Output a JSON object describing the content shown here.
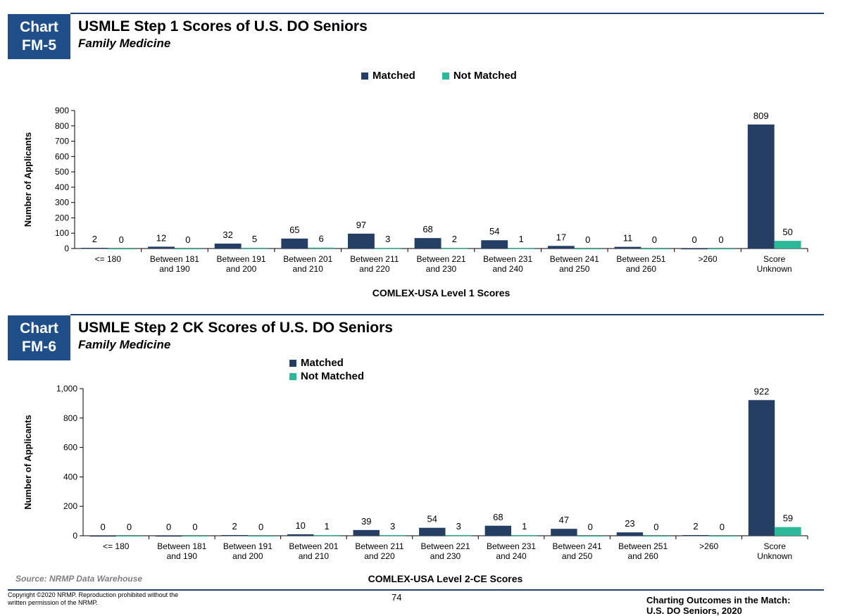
{
  "colors": {
    "matched": "#243f63",
    "not_matched": "#2bb99a",
    "badge": "#1f4e89",
    "rule": "#1f3f6e"
  },
  "charts": [
    {
      "badge": [
        "Chart",
        "FM-5"
      ],
      "title": "USMLE Step 1 Scores of U.S. DO Seniors",
      "subtitle": "Family Medicine",
      "legend": [
        "Matched",
        "Not Matched"
      ]
    },
    {
      "badge": [
        "Chart",
        "FM-6"
      ],
      "title": "USMLE Step 2 CK Scores of U.S. DO Seniors",
      "subtitle": "Family Medicine",
      "legend": [
        "Matched",
        "Not Matched"
      ]
    }
  ],
  "chart_data": [
    {
      "type": "bar",
      "title": "USMLE Step 1 Scores of U.S. DO Seniors",
      "subtitle": "Family Medicine",
      "xlabel": "COMLEX-USA Level 1 Scores",
      "ylabel": "Number of Applicants",
      "ylim": [
        0,
        900
      ],
      "yticks": [
        "0",
        "100",
        "200",
        "300",
        "400",
        "500",
        "600",
        "700",
        "800",
        "900"
      ],
      "ytick_values": [
        0,
        100,
        200,
        300,
        400,
        500,
        600,
        700,
        800,
        900
      ],
      "categories": [
        "<= 180",
        "Between 181 and 190",
        "Between 191 and 200",
        "Between 201 and 210",
        "Between 211 and 220",
        "Between 221 and 230",
        "Between 231 and 240",
        "Between 241 and 250",
        "Between 251 and 260",
        ">260",
        "Score Unknown"
      ],
      "category_lines": [
        [
          "<= 180"
        ],
        [
          "Between 181",
          "and 190"
        ],
        [
          "Between 191",
          "and 200"
        ],
        [
          "Between 201",
          "and 210"
        ],
        [
          "Between 211",
          "and 220"
        ],
        [
          "Between 221",
          "and 230"
        ],
        [
          "Between 231",
          "and 240"
        ],
        [
          "Between 241",
          "and 250"
        ],
        [
          "Between 251",
          "and 260"
        ],
        [
          ">260"
        ],
        [
          "Score",
          "Unknown"
        ]
      ],
      "series": [
        {
          "name": "Matched",
          "values": [
            2,
            12,
            32,
            65,
            97,
            68,
            54,
            17,
            11,
            0,
            809
          ]
        },
        {
          "name": "Not Matched",
          "values": [
            0,
            0,
            5,
            6,
            3,
            2,
            1,
            0,
            0,
            0,
            50
          ]
        }
      ],
      "legend_position": "top"
    },
    {
      "type": "bar",
      "title": "USMLE Step 2 CK Scores of U.S. DO Seniors",
      "subtitle": "Family Medicine",
      "xlabel": "COMLEX-USA Level 2-CE Scores",
      "ylabel": "Number of Applicants",
      "ylim": [
        0,
        1000
      ],
      "yticks": [
        "0",
        "200",
        "400",
        "600",
        "800",
        "1,000"
      ],
      "ytick_values": [
        0,
        200,
        400,
        600,
        800,
        1000
      ],
      "categories": [
        "<= 180",
        "Between 181 and 190",
        "Between 191 and 200",
        "Between 201 and 210",
        "Between 211 and 220",
        "Between 221 and 230",
        "Between 231 and 240",
        "Between 241 and 250",
        "Between 251 and 260",
        ">260",
        "Score Unknown"
      ],
      "category_lines": [
        [
          "<= 180"
        ],
        [
          "Between 181",
          "and 190"
        ],
        [
          "Between 191",
          "and 200"
        ],
        [
          "Between 201",
          "and 210"
        ],
        [
          "Between 211",
          "and 220"
        ],
        [
          "Between 221",
          "and 230"
        ],
        [
          "Between 231",
          "and 240"
        ],
        [
          "Between 241",
          "and 250"
        ],
        [
          "Between 251",
          "and 260"
        ],
        [
          ">260"
        ],
        [
          "Score",
          "Unknown"
        ]
      ],
      "series": [
        {
          "name": "Matched",
          "values": [
            0,
            0,
            2,
            10,
            39,
            54,
            68,
            47,
            23,
            2,
            922
          ]
        },
        {
          "name": "Not Matched",
          "values": [
            0,
            0,
            0,
            1,
            3,
            3,
            1,
            0,
            0,
            0,
            59
          ]
        }
      ],
      "legend_position": "top-left"
    }
  ],
  "footer": {
    "source": "Source: NRMP Data Warehouse",
    "copyright_lines": [
      "Copyright ©2020 NRMP. Reproduction prohibited without the",
      "written permission of the NRMP."
    ],
    "page_number": "74",
    "publication_lines": [
      "Charting Outcomes in the Match:",
      "U.S. DO Seniors, 2020"
    ]
  }
}
